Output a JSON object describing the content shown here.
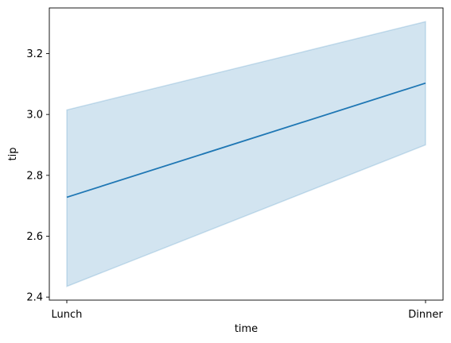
{
  "chart_data": {
    "type": "line",
    "categories": [
      "Lunch",
      "Dinner"
    ],
    "series": [
      {
        "values": [
          2.728,
          3.103
        ],
        "ci_low": [
          2.435,
          2.9
        ],
        "ci_high": [
          3.015,
          3.305
        ]
      }
    ],
    "xlabel": "time",
    "ylabel": "tip",
    "ylim": [
      2.39,
      3.35
    ],
    "yticks": [
      "2.4",
      "2.6",
      "2.8",
      "3.0",
      "3.2"
    ],
    "grid": false,
    "colors": {
      "line": "#1f77b4",
      "band": "#1f77b4"
    }
  }
}
